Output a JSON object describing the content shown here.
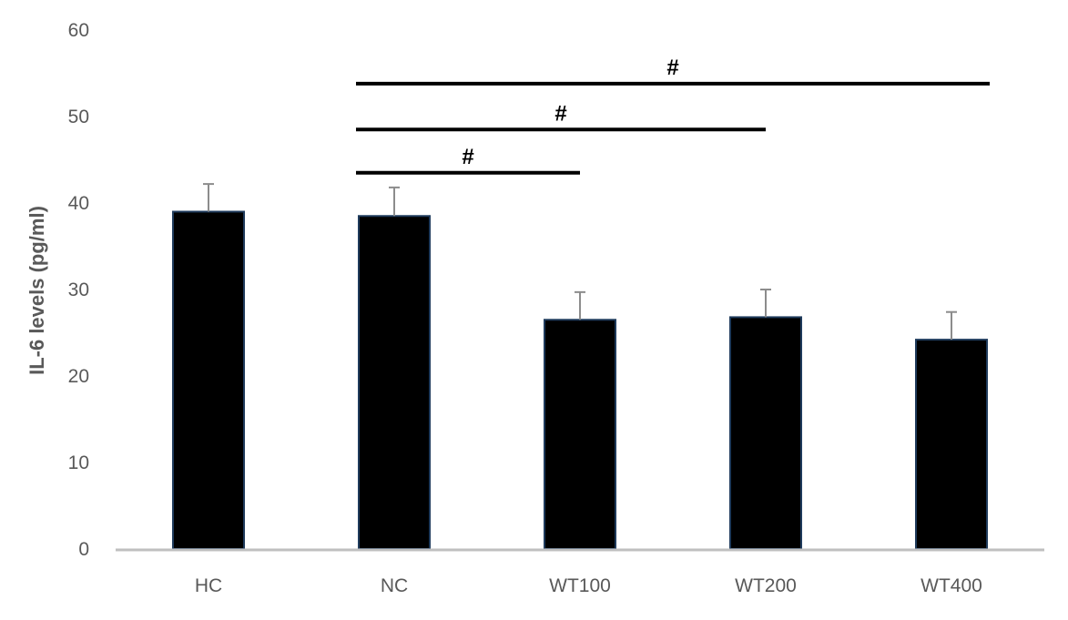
{
  "chart_data": {
    "type": "bar",
    "categories": [
      "HC",
      "NC",
      "WT100",
      "WT200",
      "WT400"
    ],
    "values": [
      39,
      38.5,
      26.5,
      26.8,
      24.2
    ],
    "error_upper": [
      3.2,
      3.3,
      3.2,
      3.2,
      3.2
    ],
    "title": "",
    "xlabel": "",
    "ylabel": "IL-6 levels (pg/ml)",
    "ylim": [
      0,
      60
    ],
    "yticks": [
      0,
      10,
      20,
      30,
      40,
      50,
      60
    ],
    "grid": false,
    "bar_color": "#000000",
    "bar_edge_color": "#1f3b5c",
    "axis_color": "#bfbfbf",
    "significance": [
      {
        "from": "NC",
        "to": "WT100",
        "y": 43.5,
        "label": "#"
      },
      {
        "from": "NC",
        "to": "WT200",
        "y": 48.5,
        "label": "#"
      },
      {
        "from": "NC",
        "to": "WT400",
        "y": 53.8,
        "label": "#"
      }
    ]
  }
}
